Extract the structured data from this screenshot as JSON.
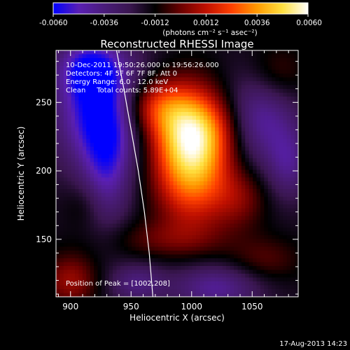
{
  "chart_data": {
    "type": "heatmap",
    "title": "Reconstructed RHESSI Image",
    "xlabel": "Heliocentric X (arcsec)",
    "ylabel": "Heliocentric Y (arcsec)",
    "xlim": [
      888,
      1088
    ],
    "ylim": [
      108,
      288
    ],
    "x_ticks": [
      900,
      950,
      1000,
      1050
    ],
    "y_ticks": [
      150,
      200,
      250
    ],
    "colorbar": {
      "label": "(photons cm⁻² s⁻¹ asec⁻²)",
      "range": [
        -0.006,
        0.006
      ],
      "ticks": [
        "-0.0060",
        "-0.0036",
        "-0.0012",
        "0.0012",
        "0.0036",
        "0.0060"
      ],
      "colors": [
        "#0000ff",
        "#5a1fb4",
        "#4a1c7a",
        "#3a1650",
        "#000000",
        "#6a0000",
        "#c01000",
        "#ff4000",
        "#ff9a00",
        "#ffe040",
        "#ffffff"
      ]
    },
    "annotations": [
      "10-Dec-2011 19:50:26.000 to 19:56:26.000",
      "Detectors: 4F 5F 6F 7F 8F, Att 0",
      "Energy Range: 6.0 - 12.0 keV",
      "Clean     Total counts: 5.89E+04"
    ],
    "peak_label": "Position of Peak = [1002,208]",
    "peak": [
      1002,
      208
    ],
    "limb_curve": [
      [
        938,
        288
      ],
      [
        944,
        260
      ],
      [
        950,
        230
      ],
      [
        956,
        200
      ],
      [
        961,
        170
      ],
      [
        965,
        140
      ],
      [
        968,
        108
      ]
    ],
    "sources": [
      {
        "x": 1000,
        "y": 210,
        "amp": 0.0062,
        "sx": 22,
        "sy": 32
      },
      {
        "x": 1005,
        "y": 232,
        "amp": 0.0025,
        "sx": 30,
        "sy": 18
      },
      {
        "x": 968,
        "y": 248,
        "amp": 0.0028,
        "sx": 20,
        "sy": 14
      },
      {
        "x": 1040,
        "y": 180,
        "amp": 0.0016,
        "sx": 16,
        "sy": 16
      },
      {
        "x": 975,
        "y": 150,
        "amp": 0.0012,
        "sx": 34,
        "sy": 10
      },
      {
        "x": 1060,
        "y": 135,
        "amp": 0.0013,
        "sx": 22,
        "sy": 12
      },
      {
        "x": 900,
        "y": 120,
        "amp": 0.0022,
        "sx": 16,
        "sy": 14
      },
      {
        "x": 1070,
        "y": 270,
        "amp": 0.0015,
        "sx": 18,
        "sy": 16
      },
      {
        "x": 912,
        "y": 175,
        "amp": 0.0008,
        "sx": 12,
        "sy": 12
      },
      {
        "x": 925,
        "y": 245,
        "amp": -0.0045,
        "sx": 26,
        "sy": 30
      },
      {
        "x": 915,
        "y": 275,
        "amp": -0.0028,
        "sx": 18,
        "sy": 14
      },
      {
        "x": 1055,
        "y": 238,
        "amp": -0.0032,
        "sx": 22,
        "sy": 24
      },
      {
        "x": 930,
        "y": 200,
        "amp": -0.0024,
        "sx": 14,
        "sy": 30
      },
      {
        "x": 1020,
        "y": 115,
        "amp": -0.0026,
        "sx": 26,
        "sy": 12
      },
      {
        "x": 1080,
        "y": 205,
        "amp": -0.002,
        "sx": 12,
        "sy": 18
      },
      {
        "x": 955,
        "y": 118,
        "amp": -0.002,
        "sx": 16,
        "sy": 10
      }
    ],
    "background": -0.0016
  },
  "timestamp": "17-Aug-2013 14:23"
}
